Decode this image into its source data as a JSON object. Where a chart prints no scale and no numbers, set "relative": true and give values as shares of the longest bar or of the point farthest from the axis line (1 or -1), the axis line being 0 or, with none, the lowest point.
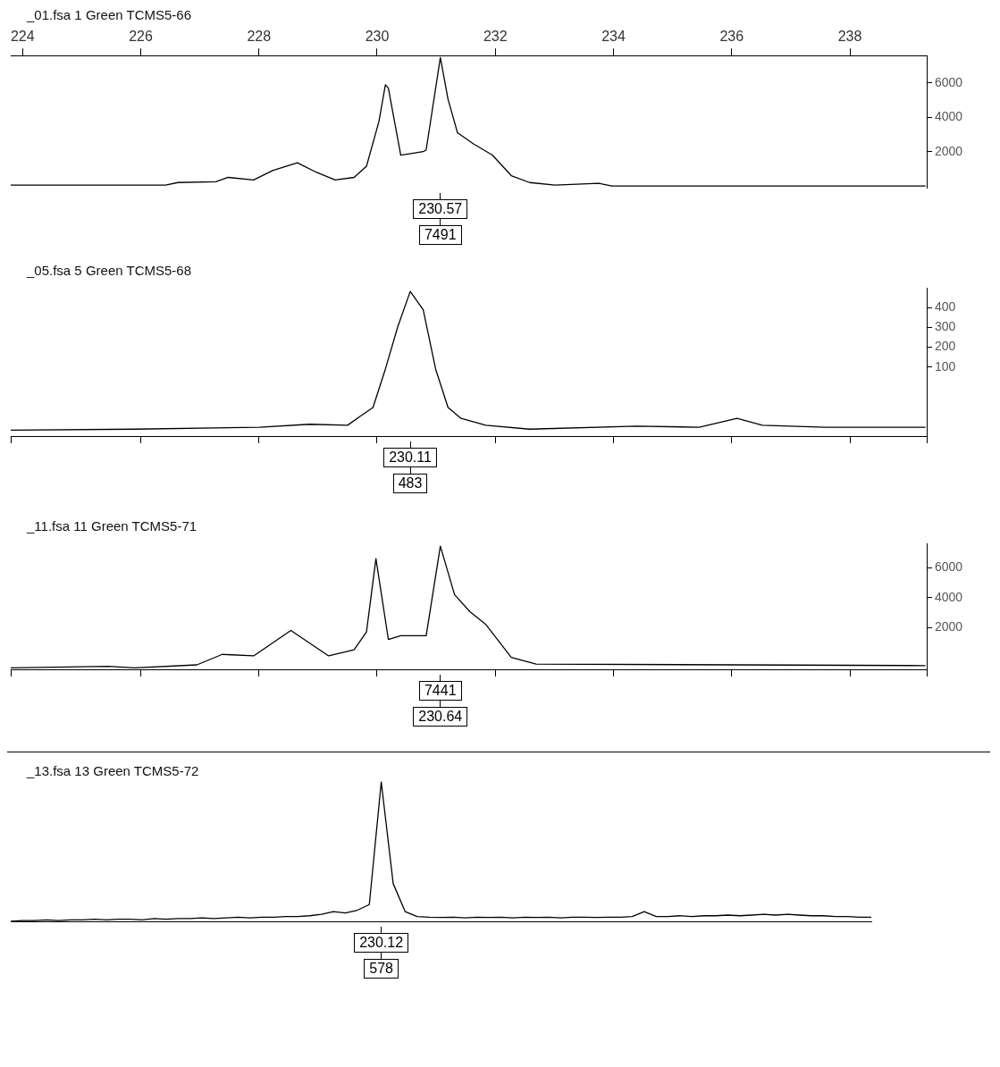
{
  "chart_data": [
    {
      "type": "line",
      "title": "_01.fsa 1 Green TCMS5-66",
      "xlim": [
        223.8,
        239.3
      ],
      "xticks": [
        224,
        226,
        228,
        230,
        232,
        234,
        236,
        238
      ],
      "ylim": [
        -100,
        7600
      ],
      "yticks": [
        2000,
        4000,
        6000
      ],
      "x": [
        223.8,
        226.42,
        226.63,
        227.27,
        227.48,
        227.91,
        228.23,
        228.65,
        228.97,
        229.29,
        229.61,
        229.82,
        230.03,
        230.14,
        230.19,
        230.4,
        230.78,
        230.83,
        231.07,
        231.2,
        231.36,
        231.63,
        231.95,
        232.27,
        232.58,
        233.01,
        233.75,
        233.97,
        239.28
      ],
      "series": [
        {
          "color": "#000000",
          "values": [
            50,
            50,
            200,
            250,
            500,
            350,
            900,
            1350,
            800,
            350,
            500,
            1150,
            3750,
            5900,
            5700,
            1800,
            2000,
            2100,
            7491,
            5050,
            3100,
            2450,
            1800,
            600,
            200,
            50,
            150,
            0,
            0
          ]
        }
      ],
      "annotations": [
        "230.57",
        "7491"
      ]
    },
    {
      "type": "line",
      "title": "_05.fsa 5 Green TCMS5-68",
      "xlim": [
        223.8,
        239.3
      ],
      "ylim": [
        -250,
        500
      ],
      "yticks": [
        100,
        200,
        300,
        400
      ],
      "tick_labels": "y",
      "x": [
        223.8,
        225.89,
        228.01,
        228.86,
        229.5,
        229.71,
        229.93,
        230.14,
        230.35,
        230.56,
        230.78,
        230.99,
        231.2,
        231.42,
        231.84,
        232.58,
        234.39,
        235.45,
        236.09,
        236.52,
        237.58,
        239.28
      ],
      "series": [
        {
          "color": "#000000",
          "values": [
            -220,
            -215,
            -205,
            -190,
            -195,
            -150,
            -105,
            90,
            305,
            483,
            390,
            90,
            -105,
            -160,
            -195,
            -215,
            -200,
            -205,
            -160,
            -195,
            -205,
            -205
          ]
        }
      ],
      "annotations": [
        "230.11",
        "483"
      ]
    },
    {
      "type": "line",
      "title": "_11.fsa 11 Green TCMS5-71",
      "xlim": [
        223.8,
        239.3
      ],
      "ylim": [
        -800,
        7600
      ],
      "yticks": [
        2000,
        4000,
        6000
      ],
      "tick_labels": "y",
      "x": [
        223.8,
        225.46,
        225.89,
        226.95,
        227.38,
        227.91,
        228.54,
        229.18,
        229.61,
        229.82,
        229.98,
        230.19,
        230.4,
        230.83,
        231.07,
        231.31,
        231.57,
        231.84,
        232.27,
        232.69,
        239.28
      ],
      "series": [
        {
          "color": "#000000",
          "values": [
            -700,
            -600,
            -700,
            -500,
            200,
            100,
            1800,
            100,
            500,
            1700,
            6600,
            1200,
            1450,
            1450,
            7441,
            4200,
            3050,
            2200,
            0,
            -450,
            -550
          ]
        }
      ],
      "annotations": [
        "7441",
        "230.64"
      ]
    },
    {
      "type": "line",
      "title": "_13.fsa 13 Green TCMS5-72",
      "relative": true,
      "tick_labels": false,
      "categories": [
        null,
        null,
        null,
        null,
        null,
        null,
        null,
        null,
        null,
        null,
        null,
        null,
        null,
        null,
        null,
        null,
        null,
        null,
        null,
        null,
        null,
        null,
        null,
        null,
        null,
        null,
        null,
        null,
        null,
        null,
        null,
        null,
        null,
        null,
        null,
        null,
        null,
        null,
        null,
        null,
        null,
        null,
        null,
        null,
        null,
        null,
        null,
        null,
        null,
        null,
        null,
        null,
        null,
        null,
        null,
        null,
        null,
        null,
        null,
        null,
        null,
        null,
        null,
        null,
        null,
        null,
        null,
        null,
        null,
        null,
        null,
        null,
        null
      ],
      "series": [
        {
          "color": "#000000",
          "values": [
            0,
            0.005,
            0.005,
            0.01,
            0.005,
            0.01,
            0.01,
            0.015,
            0.01,
            0.015,
            0.015,
            0.01,
            0.02,
            0.015,
            0.02,
            0.02,
            0.025,
            0.02,
            0.025,
            0.03,
            0.025,
            0.03,
            0.03,
            0.035,
            0.035,
            0.04,
            0.05,
            0.07,
            0.06,
            0.08,
            0.12,
            1,
            0.27,
            0.07,
            0.035,
            0.03,
            0.028,
            0.03,
            0.025,
            0.03,
            0.028,
            0.03,
            0.025,
            0.03,
            0.028,
            0.03,
            0.025,
            0.03,
            0.03,
            0.028,
            0.03,
            0.03,
            0.035,
            0.07,
            0.035,
            0.035,
            0.04,
            0.035,
            0.04,
            0.04,
            0.045,
            0.04,
            0.045,
            0.05,
            0.045,
            0.05,
            0.045,
            0.04,
            0.04,
            0.035,
            0.035,
            0.03,
            0.03
          ]
        }
      ],
      "annotations": [
        "230.12",
        "578"
      ]
    }
  ]
}
